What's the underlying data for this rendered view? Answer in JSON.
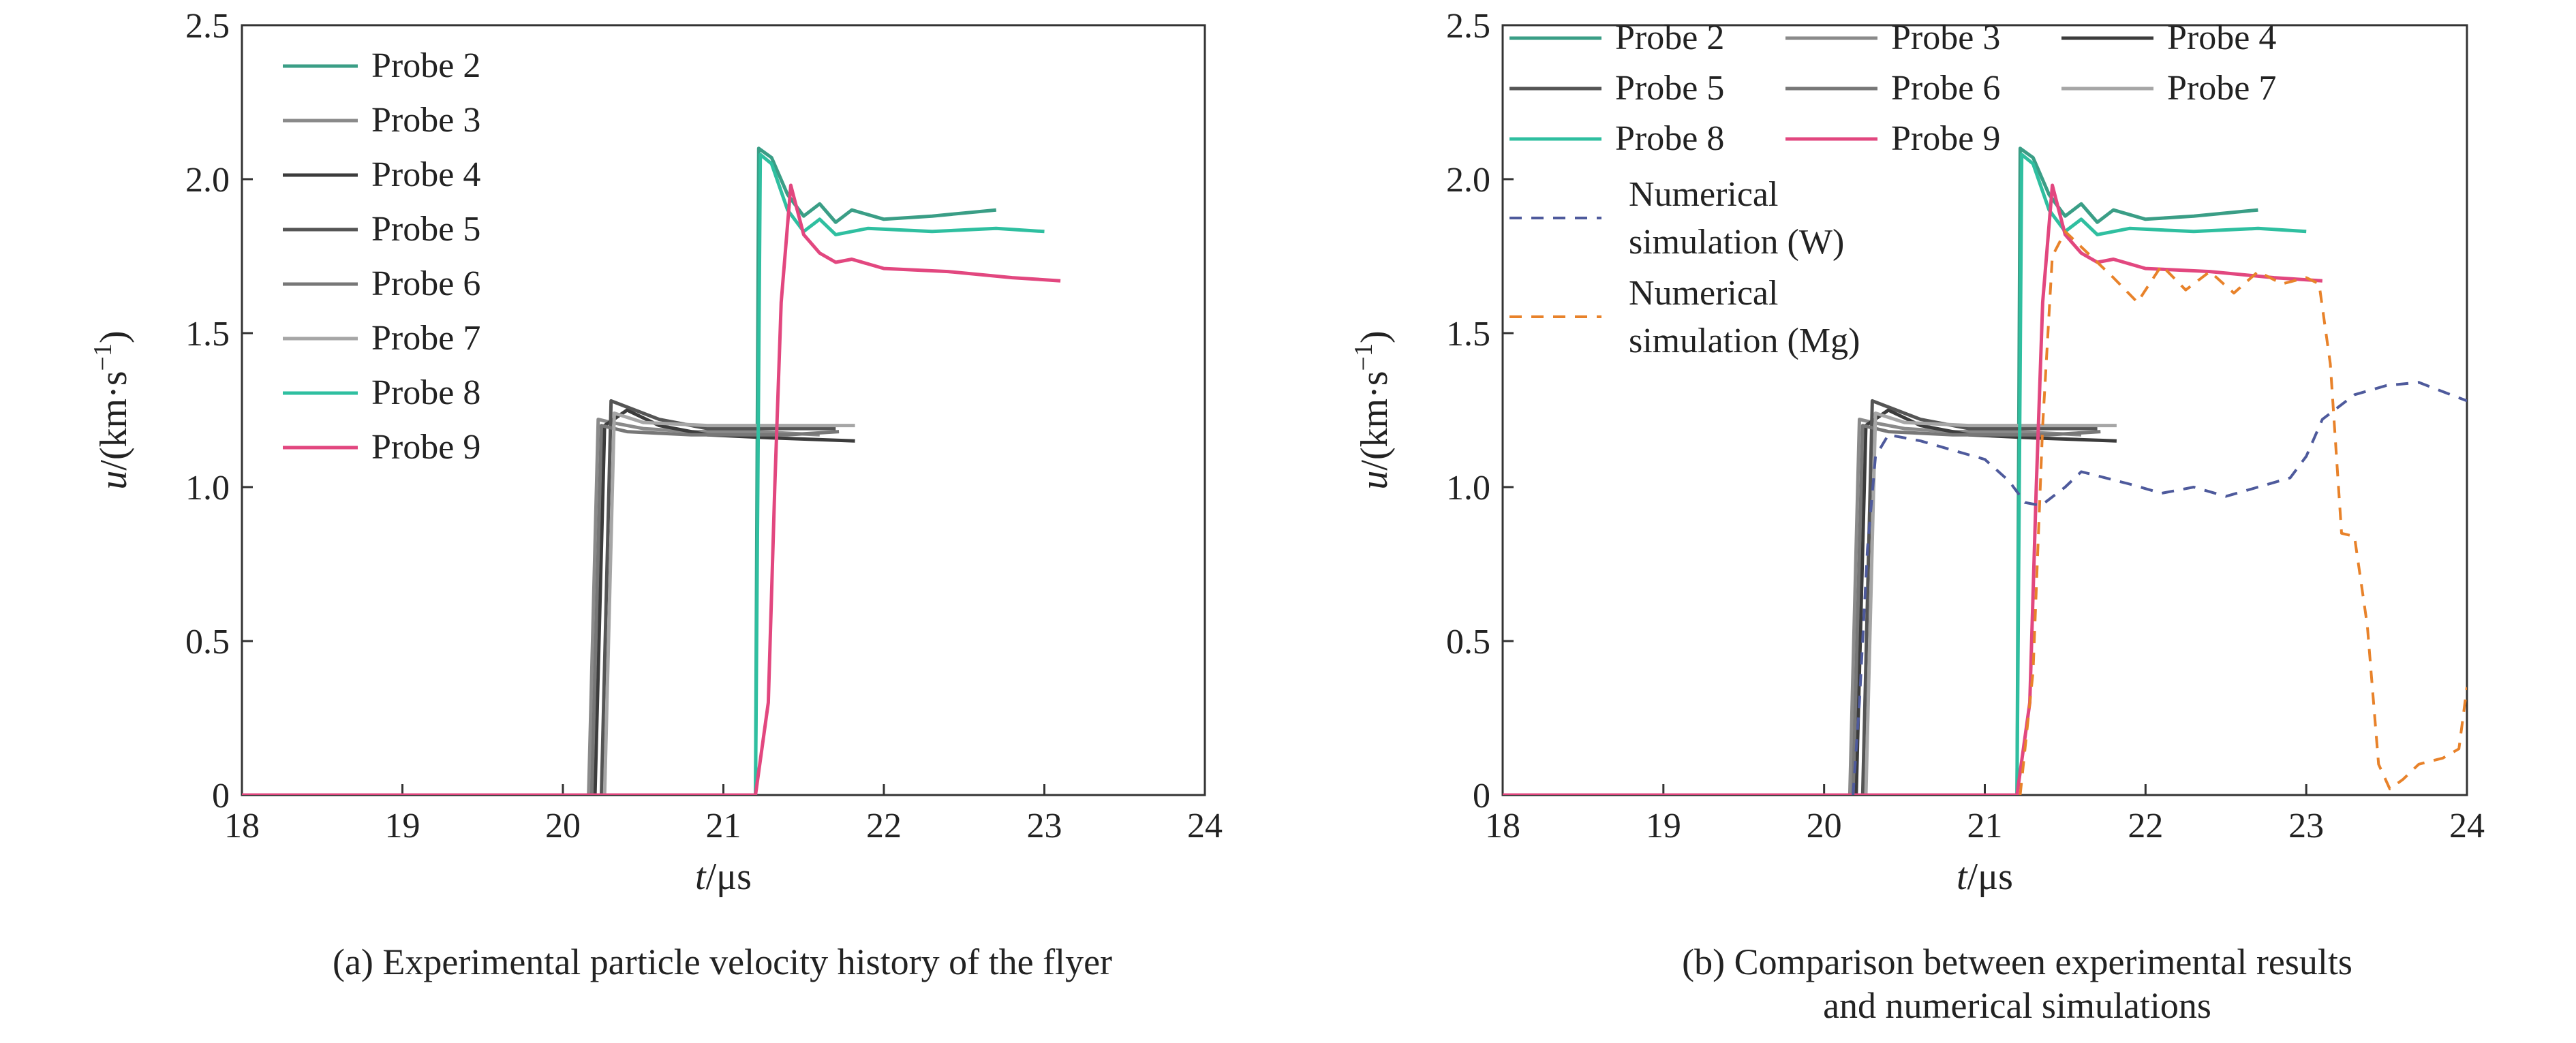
{
  "chart_data": [
    {
      "id": "a",
      "type": "line",
      "caption_lines": [
        "(a) Experimental particle velocity history of the flyer"
      ],
      "xlabel_italic": "t",
      "xlabel_unit": "/μs",
      "ylabel_italic": "u",
      "ylabel_unit": "/(km·s",
      "ylabel_sup": "−1",
      "ylabel_close": ")",
      "xlim": [
        18,
        24
      ],
      "ylim": [
        0,
        2.5
      ],
      "xticks": [
        18,
        19,
        20,
        21,
        22,
        23,
        24
      ],
      "xtick_labels": [
        "18",
        "19",
        "20",
        "21",
        "22",
        "23",
        "24"
      ],
      "yticks": [
        0,
        0.5,
        1.0,
        1.5,
        2.0,
        2.5
      ],
      "ytick_labels": [
        "0",
        "0.5",
        "1.0",
        "1.5",
        "2.0",
        "2.5"
      ],
      "legend_columns": 1,
      "legend_position": "top-left",
      "series": [
        {
          "name": "Probe 2",
          "color": "#3a9e86",
          "dash": "",
          "points": [
            [
              18,
              0
            ],
            [
              21.2,
              0
            ],
            [
              21.22,
              2.1
            ],
            [
              21.3,
              2.07
            ],
            [
              21.4,
              1.95
            ],
            [
              21.5,
              1.88
            ],
            [
              21.6,
              1.92
            ],
            [
              21.7,
              1.86
            ],
            [
              21.8,
              1.9
            ],
            [
              22,
              1.87
            ],
            [
              22.3,
              1.88
            ],
            [
              22.7,
              1.9
            ]
          ]
        },
        {
          "name": "Probe 3",
          "color": "#8a8a8a",
          "dash": "",
          "points": [
            [
              18,
              0
            ],
            [
              20.16,
              0
            ],
            [
              20.22,
              1.22
            ],
            [
              20.3,
              1.21
            ],
            [
              20.5,
              1.19
            ],
            [
              20.8,
              1.18
            ],
            [
              21.2,
              1.18
            ],
            [
              21.6,
              1.17
            ]
          ]
        },
        {
          "name": "Probe 4",
          "color": "#3c3c3c",
          "dash": "",
          "points": [
            [
              18,
              0
            ],
            [
              20.2,
              0
            ],
            [
              20.26,
              1.2
            ],
            [
              20.4,
              1.25
            ],
            [
              20.6,
              1.2
            ],
            [
              20.9,
              1.17
            ],
            [
              21.3,
              1.16
            ],
            [
              21.82,
              1.15
            ]
          ]
        },
        {
          "name": "Probe 5",
          "color": "#555555",
          "dash": "",
          "points": [
            [
              18,
              0
            ],
            [
              20.24,
              0
            ],
            [
              20.3,
              1.28
            ],
            [
              20.4,
              1.26
            ],
            [
              20.6,
              1.22
            ],
            [
              20.9,
              1.19
            ],
            [
              21.3,
              1.19
            ],
            [
              21.7,
              1.19
            ]
          ]
        },
        {
          "name": "Probe 6",
          "color": "#777777",
          "dash": "",
          "points": [
            [
              18,
              0
            ],
            [
              20.18,
              0
            ],
            [
              20.24,
              1.2
            ],
            [
              20.4,
              1.18
            ],
            [
              20.8,
              1.17
            ],
            [
              21.4,
              1.17
            ],
            [
              21.72,
              1.18
            ]
          ]
        },
        {
          "name": "Probe 7",
          "color": "#a6a6a6",
          "dash": "",
          "points": [
            [
              18,
              0
            ],
            [
              20.26,
              0
            ],
            [
              20.32,
              1.24
            ],
            [
              20.5,
              1.21
            ],
            [
              20.9,
              1.2
            ],
            [
              21.4,
              1.2
            ],
            [
              21.82,
              1.2
            ]
          ]
        },
        {
          "name": "Probe 8",
          "color": "#2fbfa0",
          "dash": "",
          "points": [
            [
              18,
              0
            ],
            [
              21.2,
              0
            ],
            [
              21.23,
              2.08
            ],
            [
              21.3,
              2.05
            ],
            [
              21.4,
              1.9
            ],
            [
              21.5,
              1.83
            ],
            [
              21.6,
              1.87
            ],
            [
              21.7,
              1.82
            ],
            [
              21.9,
              1.84
            ],
            [
              22.3,
              1.83
            ],
            [
              22.7,
              1.84
            ],
            [
              23,
              1.83
            ]
          ]
        },
        {
          "name": "Probe 9",
          "color": "#e2477f",
          "dash": "",
          "points": [
            [
              18,
              0
            ],
            [
              21.2,
              0
            ],
            [
              21.28,
              0.3
            ],
            [
              21.32,
              1.0
            ],
            [
              21.36,
              1.6
            ],
            [
              21.42,
              1.98
            ],
            [
              21.5,
              1.82
            ],
            [
              21.6,
              1.76
            ],
            [
              21.7,
              1.73
            ],
            [
              21.8,
              1.74
            ],
            [
              22,
              1.71
            ],
            [
              22.4,
              1.7
            ],
            [
              22.8,
              1.68
            ],
            [
              23.1,
              1.67
            ]
          ]
        }
      ]
    },
    {
      "id": "b",
      "type": "line",
      "caption_lines": [
        "(b) Comparison between experimental results",
        "and numerical simulations"
      ],
      "xlabel_italic": "t",
      "xlabel_unit": "/μs",
      "ylabel_italic": "u",
      "ylabel_unit": "/(km·s",
      "ylabel_sup": "−1",
      "ylabel_close": ")",
      "xlim": [
        18,
        24
      ],
      "ylim": [
        0,
        2.5
      ],
      "xticks": [
        18,
        19,
        20,
        21,
        22,
        23,
        24
      ],
      "xtick_labels": [
        "18",
        "19",
        "20",
        "21",
        "22",
        "23",
        "24"
      ],
      "yticks": [
        0,
        0.5,
        1.0,
        1.5,
        2.0,
        2.5
      ],
      "ytick_labels": [
        "0",
        "0.5",
        "1.0",
        "1.5",
        "2.0",
        "2.5"
      ],
      "legend_columns": 3,
      "legend_position": "top-left",
      "legend_extra": [
        {
          "name_lines": [
            "Numerical",
            "simulation (W)"
          ],
          "color": "#4e5a9c"
        },
        {
          "name_lines": [
            "Numerical",
            "simulation (Mg)"
          ],
          "color": "#e8822a"
        }
      ],
      "series": [
        {
          "name": "Probe 2",
          "color": "#3a9e86",
          "dash": "",
          "points": [
            [
              18,
              0
            ],
            [
              21.2,
              0
            ],
            [
              21.22,
              2.1
            ],
            [
              21.3,
              2.07
            ],
            [
              21.4,
              1.95
            ],
            [
              21.5,
              1.88
            ],
            [
              21.6,
              1.92
            ],
            [
              21.7,
              1.86
            ],
            [
              21.8,
              1.9
            ],
            [
              22,
              1.87
            ],
            [
              22.3,
              1.88
            ],
            [
              22.7,
              1.9
            ]
          ]
        },
        {
          "name": "Probe 3",
          "color": "#8a8a8a",
          "dash": "",
          "points": [
            [
              18,
              0
            ],
            [
              20.16,
              0
            ],
            [
              20.22,
              1.22
            ],
            [
              20.3,
              1.21
            ],
            [
              20.5,
              1.19
            ],
            [
              20.8,
              1.18
            ],
            [
              21.2,
              1.18
            ],
            [
              21.6,
              1.17
            ]
          ]
        },
        {
          "name": "Probe 4",
          "color": "#3c3c3c",
          "dash": "",
          "points": [
            [
              18,
              0
            ],
            [
              20.2,
              0
            ],
            [
              20.26,
              1.2
            ],
            [
              20.4,
              1.25
            ],
            [
              20.6,
              1.2
            ],
            [
              20.9,
              1.17
            ],
            [
              21.3,
              1.16
            ],
            [
              21.82,
              1.15
            ]
          ]
        },
        {
          "name": "Probe 5",
          "color": "#555555",
          "dash": "",
          "points": [
            [
              18,
              0
            ],
            [
              20.24,
              0
            ],
            [
              20.3,
              1.28
            ],
            [
              20.4,
              1.26
            ],
            [
              20.6,
              1.22
            ],
            [
              20.9,
              1.19
            ],
            [
              21.3,
              1.19
            ],
            [
              21.7,
              1.19
            ]
          ]
        },
        {
          "name": "Probe 6",
          "color": "#777777",
          "dash": "",
          "points": [
            [
              18,
              0
            ],
            [
              20.18,
              0
            ],
            [
              20.24,
              1.2
            ],
            [
              20.4,
              1.18
            ],
            [
              20.8,
              1.17
            ],
            [
              21.4,
              1.17
            ],
            [
              21.72,
              1.18
            ]
          ]
        },
        {
          "name": "Probe 7",
          "color": "#a6a6a6",
          "dash": "",
          "points": [
            [
              18,
              0
            ],
            [
              20.26,
              0
            ],
            [
              20.32,
              1.24
            ],
            [
              20.5,
              1.21
            ],
            [
              20.9,
              1.2
            ],
            [
              21.4,
              1.2
            ],
            [
              21.82,
              1.2
            ]
          ]
        },
        {
          "name": "Probe 8",
          "color": "#2fbfa0",
          "dash": "",
          "points": [
            [
              18,
              0
            ],
            [
              21.2,
              0
            ],
            [
              21.23,
              2.08
            ],
            [
              21.3,
              2.05
            ],
            [
              21.4,
              1.9
            ],
            [
              21.5,
              1.83
            ],
            [
              21.6,
              1.87
            ],
            [
              21.7,
              1.82
            ],
            [
              21.9,
              1.84
            ],
            [
              22.3,
              1.83
            ],
            [
              22.7,
              1.84
            ],
            [
              23,
              1.83
            ]
          ]
        },
        {
          "name": "Probe 9",
          "color": "#e2477f",
          "dash": "",
          "points": [
            [
              18,
              0
            ],
            [
              21.2,
              0
            ],
            [
              21.28,
              0.3
            ],
            [
              21.32,
              1.0
            ],
            [
              21.36,
              1.6
            ],
            [
              21.42,
              1.98
            ],
            [
              21.5,
              1.82
            ],
            [
              21.6,
              1.76
            ],
            [
              21.7,
              1.73
            ],
            [
              21.8,
              1.74
            ],
            [
              22,
              1.71
            ],
            [
              22.4,
              1.7
            ],
            [
              22.8,
              1.68
            ],
            [
              23.1,
              1.67
            ]
          ]
        },
        {
          "name": "Numerical simulation (W)",
          "color": "#4e5a9c",
          "dash": "18,14",
          "points": [
            [
              20.18,
              0
            ],
            [
              20.22,
              0.3
            ],
            [
              20.27,
              0.8
            ],
            [
              20.32,
              1.1
            ],
            [
              20.4,
              1.17
            ],
            [
              20.6,
              1.15
            ],
            [
              20.8,
              1.12
            ],
            [
              21.0,
              1.09
            ],
            [
              21.15,
              1.02
            ],
            [
              21.25,
              0.95
            ],
            [
              21.35,
              0.94
            ],
            [
              21.5,
              1.0
            ],
            [
              21.6,
              1.05
            ],
            [
              21.75,
              1.03
            ],
            [
              21.9,
              1.01
            ],
            [
              22.1,
              0.98
            ],
            [
              22.3,
              1.0
            ],
            [
              22.5,
              0.97
            ],
            [
              22.7,
              1.0
            ],
            [
              22.9,
              1.03
            ],
            [
              23.0,
              1.1
            ],
            [
              23.1,
              1.22
            ],
            [
              23.3,
              1.3
            ],
            [
              23.5,
              1.33
            ],
            [
              23.7,
              1.34
            ],
            [
              23.85,
              1.31
            ],
            [
              24,
              1.28
            ]
          ]
        },
        {
          "name": "Numerical simulation (Mg)",
          "color": "#e8822a",
          "dash": "18,14",
          "points": [
            [
              21.22,
              0
            ],
            [
              21.3,
              0.4
            ],
            [
              21.36,
              1.2
            ],
            [
              21.42,
              1.75
            ],
            [
              21.5,
              1.83
            ],
            [
              21.6,
              1.78
            ],
            [
              21.7,
              1.73
            ],
            [
              21.8,
              1.68
            ],
            [
              21.95,
              1.6
            ],
            [
              22.1,
              1.72
            ],
            [
              22.25,
              1.64
            ],
            [
              22.4,
              1.7
            ],
            [
              22.55,
              1.63
            ],
            [
              22.7,
              1.7
            ],
            [
              22.85,
              1.66
            ],
            [
              23.0,
              1.68
            ],
            [
              23.08,
              1.66
            ],
            [
              23.15,
              1.4
            ],
            [
              23.22,
              0.85
            ],
            [
              23.3,
              0.84
            ],
            [
              23.38,
              0.55
            ],
            [
              23.45,
              0.1
            ],
            [
              23.52,
              0.02
            ],
            [
              23.6,
              0.05
            ],
            [
              23.7,
              0.1
            ],
            [
              23.85,
              0.12
            ],
            [
              23.95,
              0.15
            ],
            [
              24,
              0.35
            ]
          ]
        }
      ]
    }
  ]
}
